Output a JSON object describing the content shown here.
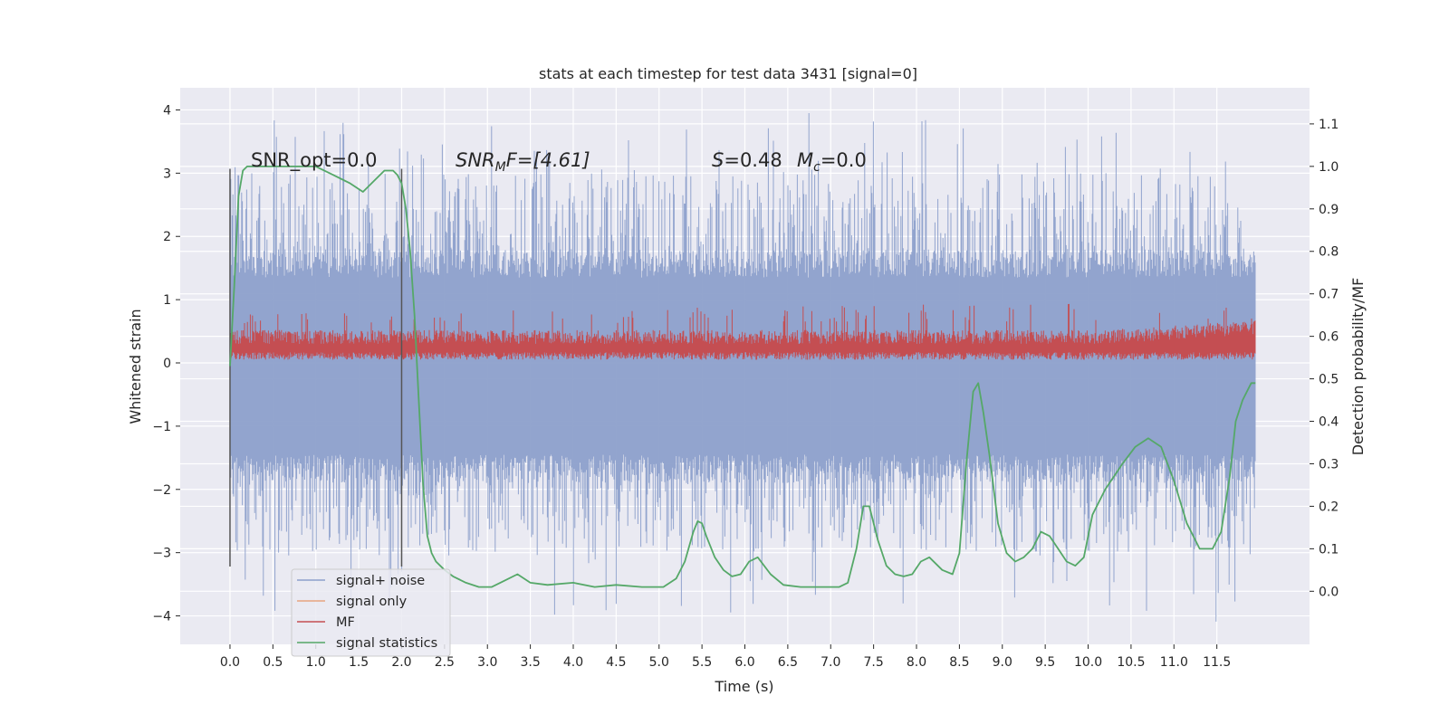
{
  "chart_data": {
    "type": "line",
    "title": "stats at each timestep for test data 3431 [signal=0]",
    "xlabel": "Time (s)",
    "ylabel": "Whitened strain",
    "y2label": "Detection probability/MF",
    "xlim": [
      -0.58,
      12.58
    ],
    "ylim": [
      -4.45,
      4.35
    ],
    "y2lim": [
      -0.125,
      1.185
    ],
    "grid": true,
    "legend_position": "lower-left",
    "x_ticks": [
      "0.0",
      "0.5",
      "1.0",
      "1.5",
      "2.0",
      "2.5",
      "3.0",
      "3.5",
      "4.0",
      "4.5",
      "5.0",
      "5.5",
      "6.0",
      "6.5",
      "7.0",
      "7.5",
      "8.0",
      "8.5",
      "9.0",
      "9.5",
      "10.0",
      "10.5",
      "11.0",
      "11.5"
    ],
    "y_ticks": [
      "4",
      "3",
      "2",
      "1",
      "0",
      "−1",
      "−2",
      "−3",
      "−4"
    ],
    "y2_ticks": [
      "1.1",
      "1.0",
      "0.9",
      "0.8",
      "0.7",
      "0.6",
      "0.5",
      "0.4",
      "0.3",
      "0.2",
      "0.1",
      "0.0"
    ],
    "annotations": {
      "snr_opt": "SNR_opt=0.0",
      "snr_mf_prefix": "SNR",
      "snr_mf_sub": "M",
      "snr_mf_suffix": "F=[4.61]",
      "s_symbol": "S",
      "s_value": "=0.48",
      "mc_symbol": "M",
      "mc_sub": "c",
      "mc_value": "=0.0"
    },
    "vertical_markers": [
      0.0,
      2.0
    ],
    "series": [
      {
        "name": "signal+ noise",
        "color": "#8da0cb",
        "axis": "left",
        "kind": "noise",
        "x_range": [
          0.0,
          11.95
        ],
        "core_range": [
          -1.9,
          1.8
        ],
        "peak_range": [
          -4.1,
          3.95
        ]
      },
      {
        "name": "signal only",
        "color": "#e8a57f",
        "axis": "left",
        "kind": "flat",
        "values": []
      },
      {
        "name": "MF",
        "color": "#c44e52",
        "axis": "left",
        "kind": "band",
        "x_range": [
          0.0,
          11.95
        ],
        "band_range": [
          0.0,
          0.6
        ],
        "peak_max": 1.0
      },
      {
        "name": "signal statistics",
        "color": "#55a868",
        "axis": "right",
        "x": [
          0.0,
          0.05,
          0.1,
          0.15,
          0.2,
          0.3,
          0.5,
          0.7,
          1.0,
          1.2,
          1.4,
          1.55,
          1.7,
          1.8,
          1.9,
          1.95,
          2.0,
          2.05,
          2.1,
          2.15,
          2.2,
          2.25,
          2.3,
          2.35,
          2.4,
          2.5,
          2.6,
          2.75,
          2.9,
          3.05,
          3.2,
          3.35,
          3.5,
          3.7,
          4.0,
          4.25,
          4.5,
          4.8,
          5.05,
          5.2,
          5.3,
          5.4,
          5.45,
          5.5,
          5.55,
          5.65,
          5.75,
          5.85,
          5.95,
          6.05,
          6.15,
          6.3,
          6.45,
          6.65,
          6.85,
          7.0,
          7.1,
          7.2,
          7.3,
          7.38,
          7.45,
          7.55,
          7.65,
          7.75,
          7.85,
          7.95,
          8.05,
          8.15,
          8.3,
          8.42,
          8.5,
          8.58,
          8.66,
          8.72,
          8.78,
          8.85,
          8.95,
          9.05,
          9.15,
          9.25,
          9.35,
          9.45,
          9.55,
          9.65,
          9.75,
          9.85,
          9.95,
          10.05,
          10.2,
          10.4,
          10.55,
          10.7,
          10.85,
          11.0,
          11.15,
          11.3,
          11.45,
          11.55,
          11.65,
          11.72,
          11.8,
          11.9,
          11.95
        ],
        "values": [
          0.53,
          0.72,
          0.93,
          0.99,
          1.0,
          1.0,
          1.0,
          1.0,
          1.0,
          0.98,
          0.96,
          0.94,
          0.97,
          0.99,
          0.99,
          0.98,
          0.96,
          0.9,
          0.8,
          0.65,
          0.45,
          0.25,
          0.13,
          0.09,
          0.07,
          0.05,
          0.035,
          0.02,
          0.01,
          0.01,
          0.025,
          0.04,
          0.02,
          0.015,
          0.02,
          0.01,
          0.015,
          0.01,
          0.01,
          0.03,
          0.07,
          0.14,
          0.165,
          0.16,
          0.13,
          0.08,
          0.05,
          0.035,
          0.04,
          0.07,
          0.08,
          0.04,
          0.015,
          0.01,
          0.01,
          0.01,
          0.01,
          0.02,
          0.1,
          0.2,
          0.2,
          0.12,
          0.06,
          0.04,
          0.035,
          0.04,
          0.07,
          0.08,
          0.05,
          0.04,
          0.09,
          0.3,
          0.47,
          0.49,
          0.42,
          0.32,
          0.16,
          0.09,
          0.07,
          0.08,
          0.1,
          0.14,
          0.13,
          0.1,
          0.07,
          0.06,
          0.08,
          0.18,
          0.24,
          0.3,
          0.34,
          0.36,
          0.34,
          0.26,
          0.16,
          0.1,
          0.1,
          0.14,
          0.27,
          0.4,
          0.45,
          0.49,
          0.49
        ]
      }
    ]
  }
}
